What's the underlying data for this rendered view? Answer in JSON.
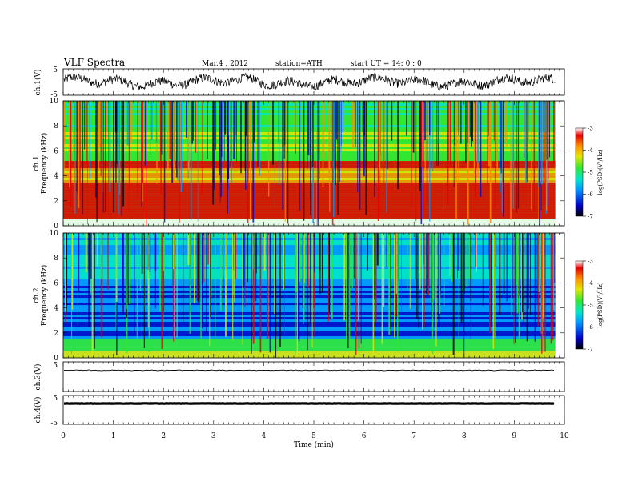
{
  "header": {
    "title": "VLF Spectra",
    "date": "Mar.4 , 2012",
    "station": "station=ATH",
    "start_ut": "start UT = 14: 0 : 0"
  },
  "chart_data": [
    {
      "id": "ch1-waveform",
      "type": "line",
      "ylabel": "ch.1(V)",
      "ylim": [
        -5,
        5
      ],
      "yticks": [
        "5",
        "-5"
      ],
      "xlim": [
        0,
        10
      ],
      "data_extent_x": 9.82,
      "description_of_trace": "noisy broadband waveform roughly between -3 and 3 V"
    },
    {
      "id": "ch1-spectrogram",
      "type": "heatmap",
      "ylabel": [
        "ch.1",
        "Frequency (kHz)"
      ],
      "ylim": [
        0,
        10
      ],
      "yticks": [
        "0",
        "2",
        "4",
        "6",
        "8",
        "10"
      ],
      "xlim": [
        0,
        10
      ],
      "colorbar": {
        "label": "log(PSD)(V²/Hz)",
        "range": [
          -7,
          -3
        ],
        "ticks": [
          "-3",
          "-4",
          "-5",
          "-6",
          "-7"
        ]
      }
    },
    {
      "id": "ch2-spectrogram",
      "type": "heatmap",
      "ylabel": [
        "ch.2",
        "Frequency (kHz)"
      ],
      "ylim": [
        0,
        10
      ],
      "yticks": [
        "0",
        "2",
        "4",
        "6",
        "8",
        "10"
      ],
      "xlim": [
        0,
        10
      ],
      "colorbar": {
        "label": "log(PSD)(V²/Hz)",
        "range": [
          -7,
          -3
        ],
        "ticks": [
          "-3",
          "-4",
          "-5",
          "-6",
          "-7"
        ]
      }
    },
    {
      "id": "ch3-waveform",
      "type": "line",
      "ylabel": "ch.3(V)",
      "ylim": [
        -5,
        5
      ],
      "yticks": [
        "5"
      ],
      "xlim": [
        0,
        10
      ],
      "level": 0
    },
    {
      "id": "ch4-waveform",
      "type": "line",
      "ylabel": "ch.4(V)",
      "ylim": [
        -5,
        5
      ],
      "yticks": [
        "5",
        "-5"
      ],
      "xlim": [
        0,
        10
      ],
      "level": 0
    }
  ],
  "x_axis": {
    "label": "Time (min)",
    "ticks": [
      "0",
      "1",
      "2",
      "3",
      "4",
      "5",
      "6",
      "7",
      "8",
      "9",
      "10"
    ]
  },
  "colors": {
    "spectrum_scale": [
      "#000000",
      "#0000c8",
      "#0096ff",
      "#00e6c8",
      "#32e632",
      "#e6e600",
      "#ff8c00",
      "#e60000",
      "#ffffff"
    ]
  }
}
